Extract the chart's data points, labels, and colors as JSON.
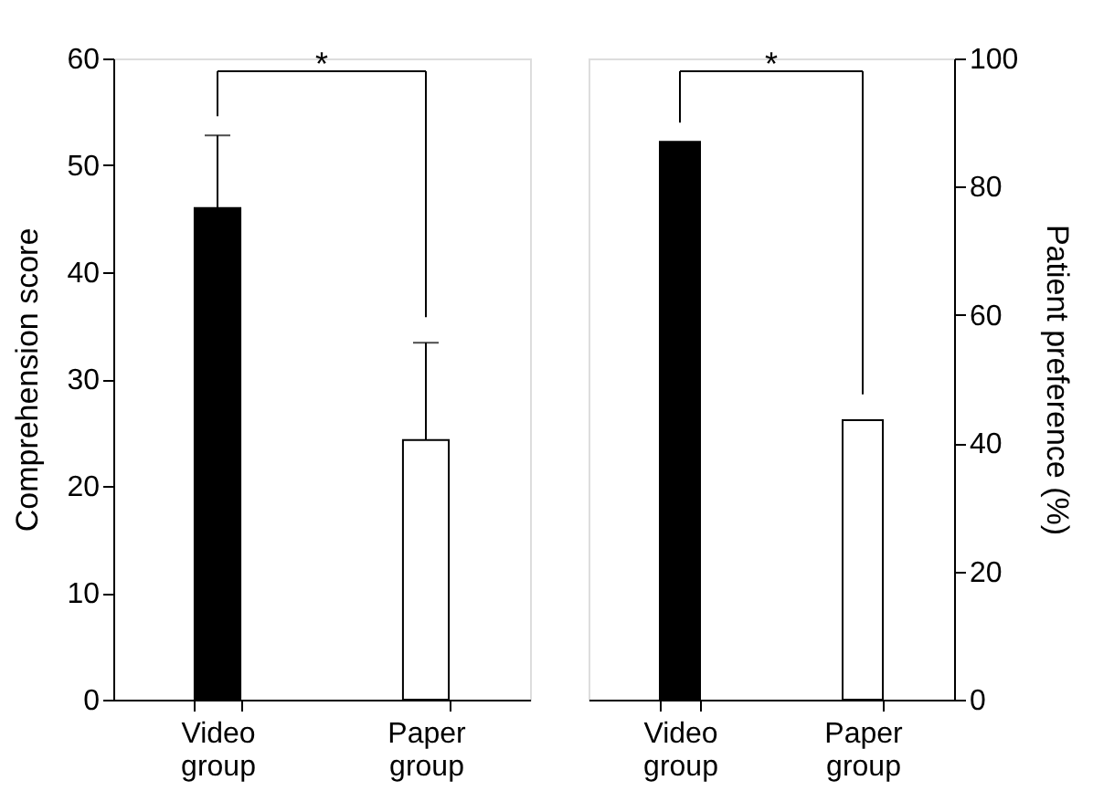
{
  "chart_data": [
    {
      "type": "bar",
      "categories": [
        "Video group",
        "Paper group"
      ],
      "values": [
        46,
        24.3
      ],
      "colors": [
        "#000000",
        "#ffffff"
      ],
      "errors": [
        [
          46,
          52.8
        ],
        [
          24.3,
          33.4
        ]
      ],
      "ylim": [
        0,
        60
      ],
      "yticks": [
        0,
        10,
        20,
        30,
        40,
        50,
        60
      ],
      "ylabel": "Comprehension score",
      "annotations": [
        "*"
      ]
    },
    {
      "type": "bar",
      "categories": [
        "Video group",
        "Paper group"
      ],
      "series": [
        {
          "values": [
            87,
            43.6
          ],
          "colors": [
            "#000000",
            "#ffffff"
          ],
          "axis": "y2"
        }
      ],
      "y2lim": [
        0,
        100
      ],
      "y2ticks": [
        0,
        20,
        40,
        60,
        80,
        100
      ],
      "y2label": "Patient preference (%)",
      "annotations": [
        "*"
      ]
    }
  ]
}
